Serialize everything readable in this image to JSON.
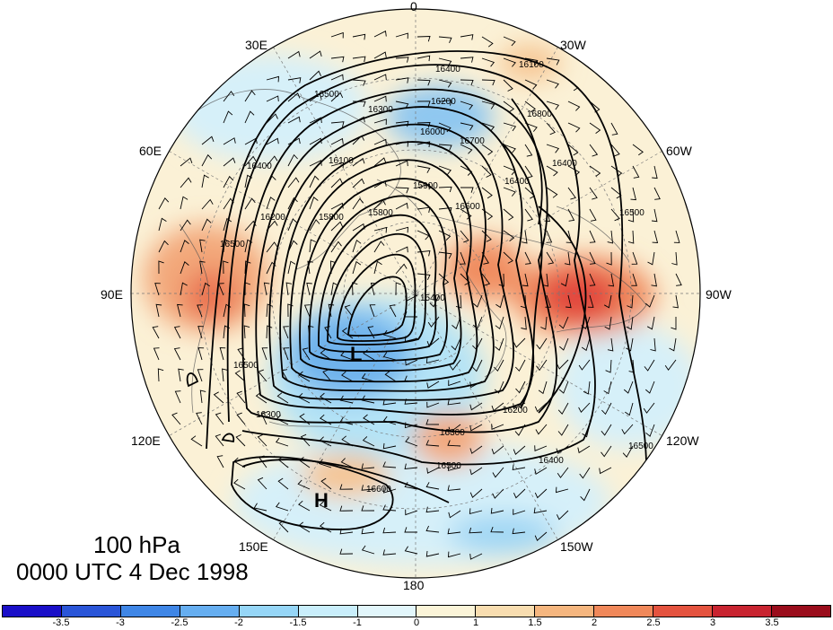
{
  "map": {
    "level_label": "100 hPa",
    "time_label": "0000 UTC 4 Dec 1998",
    "longitude_labels": [
      "0",
      "30W",
      "60W",
      "90W",
      "120W",
      "150W",
      "180",
      "150E",
      "120E",
      "90E",
      "60E",
      "30E"
    ],
    "pressure_centers": [
      {
        "name": "low",
        "label": "L"
      },
      {
        "name": "high",
        "label": "H"
      }
    ],
    "contour_labels": [
      "16500",
      "16400",
      "16300",
      "16200",
      "16000",
      "16100",
      "15900",
      "15800",
      "15800",
      "16200",
      "16400",
      "16500",
      "16500",
      "16300",
      "15400",
      "16200",
      "16400",
      "16500",
      "16600",
      "16800",
      "16700",
      "16600",
      "16300",
      "16500",
      "16400",
      "16400",
      "16500",
      "16100"
    ],
    "contour_line_color": "#000000",
    "wind_barb_color": "#000000"
  },
  "colorbar": {
    "colors": [
      "#1a0fc8",
      "#2a55d8",
      "#3f86e6",
      "#66aef0",
      "#96d6f7",
      "#c9eefb",
      "#e2f6fb",
      "#fbf4d8",
      "#f8ddb0",
      "#f5b67f",
      "#f0885a",
      "#e4533f",
      "#c82430",
      "#9a0d1c"
    ],
    "tick_labels": [
      "-3.5",
      "-3",
      "-2.5",
      "-2",
      "-1.5",
      "-1",
      "0",
      "1",
      "1.5",
      "2",
      "2.5",
      "3",
      "3.5"
    ]
  }
}
